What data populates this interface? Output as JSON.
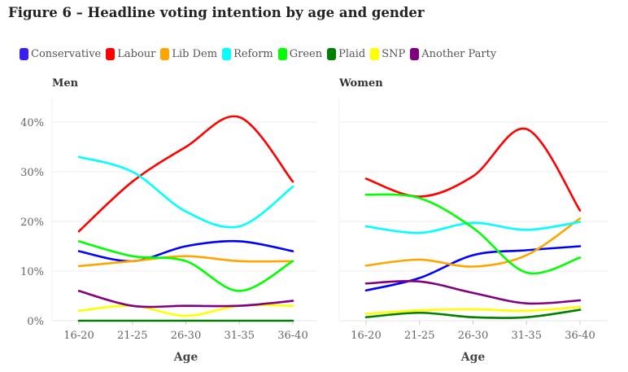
{
  "title": "Figure 6 – Headline voting intention by age and gender",
  "legend": [
    {
      "name": "Conservative",
      "color": "#3a1ff5"
    },
    {
      "name": "Labour",
      "color": "#ff0000"
    },
    {
      "name": "Lib Dem",
      "color": "#ffa500"
    },
    {
      "name": "Reform",
      "color": "#00ffff"
    },
    {
      "name": "Green",
      "color": "#00ff00"
    },
    {
      "name": "Plaid",
      "color": "#008000"
    },
    {
      "name": "SNP",
      "color": "#ffff00"
    },
    {
      "name": "Another Party",
      "color": "#800080"
    }
  ],
  "chart_data": [
    {
      "type": "line",
      "title": "Men",
      "xlabel": "Age",
      "ylabel": "",
      "ylim": [
        0,
        40
      ],
      "yticks": [
        "0%",
        "10%",
        "20%",
        "30%",
        "40%"
      ],
      "categories": [
        "16-20",
        "21-25",
        "26-30",
        "31-35",
        "36-40"
      ],
      "series": [
        {
          "name": "Conservative",
          "color": "#0000ff",
          "values": [
            14,
            12,
            15,
            16,
            14
          ]
        },
        {
          "name": "Labour",
          "color": "#ff0000",
          "values": [
            18,
            28,
            35,
            41,
            28
          ]
        },
        {
          "name": "Lib Dem",
          "color": "#ffa500",
          "values": [
            11,
            12,
            13,
            12,
            12
          ]
        },
        {
          "name": "Reform",
          "color": "#00ffff",
          "values": [
            33,
            30,
            22,
            19,
            27
          ]
        },
        {
          "name": "Green",
          "color": "#00ff00",
          "values": [
            16,
            13,
            12,
            6,
            12
          ]
        },
        {
          "name": "Plaid",
          "color": "#008000",
          "values": [
            0,
            0,
            0,
            0,
            0
          ]
        },
        {
          "name": "SNP",
          "color": "#ffff00",
          "values": [
            2,
            3,
            1,
            3,
            3
          ]
        },
        {
          "name": "Another Party",
          "color": "#800080",
          "values": [
            6,
            3,
            3,
            3,
            4
          ]
        }
      ]
    },
    {
      "type": "line",
      "title": "Women",
      "xlabel": "Age",
      "ylabel": "",
      "ylim": [
        0,
        40
      ],
      "categories": [
        "16-20",
        "21-25",
        "26-30",
        "31-35",
        "36-40"
      ],
      "series": [
        {
          "name": "Conservative",
          "color": "#0000ff",
          "values": [
            6.1,
            8.6,
            13.2,
            14.2,
            15.0
          ]
        },
        {
          "name": "Labour",
          "color": "#ff0000",
          "values": [
            28.6,
            25.0,
            29.1,
            38.6,
            22.2
          ]
        },
        {
          "name": "Lib Dem",
          "color": "#ffa500",
          "values": [
            11.1,
            12.3,
            10.9,
            13.2,
            20.6
          ]
        },
        {
          "name": "Reform",
          "color": "#00ffff",
          "values": [
            19.0,
            17.7,
            19.7,
            18.3,
            19.9
          ]
        },
        {
          "name": "Green",
          "color": "#00ff00",
          "values": [
            25.4,
            24.7,
            18.7,
            9.7,
            12.7
          ]
        },
        {
          "name": "Plaid",
          "color": "#008000",
          "values": [
            0.7,
            1.6,
            0.7,
            0.7,
            2.2
          ]
        },
        {
          "name": "SNP",
          "color": "#ffff00",
          "values": [
            1.4,
            2.1,
            2.3,
            2.0,
            2.8
          ]
        },
        {
          "name": "Another Party",
          "color": "#800080",
          "values": [
            7.5,
            7.9,
            5.6,
            3.5,
            4.1
          ]
        }
      ]
    }
  ]
}
